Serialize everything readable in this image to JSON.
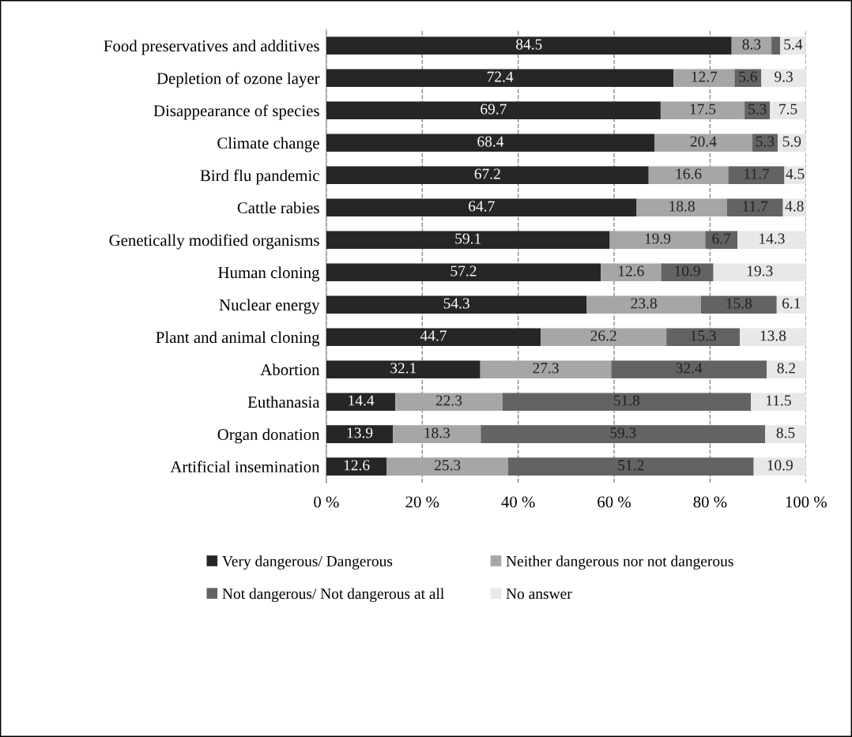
{
  "chart_data": {
    "type": "bar",
    "orientation": "horizontal",
    "stacked": true,
    "categories": [
      "Food preservatives and additives",
      "Depletion of ozone layer",
      "Disappearance of species",
      "Climate change",
      "Bird flu pandemic",
      "Cattle rabies",
      "Genetically modified organisms",
      "Human cloning",
      "Nuclear energy",
      "Plant and animal cloning",
      "Abortion",
      "Euthanasia",
      "Organ donation",
      "Artificial insemination"
    ],
    "series": [
      {
        "name": "Very dangerous/ Dangerous",
        "color": "#262626",
        "values": [
          84.5,
          72.4,
          69.7,
          68.4,
          67.2,
          64.7,
          59.1,
          57.2,
          54.3,
          44.7,
          32.1,
          14.4,
          13.9,
          12.6
        ]
      },
      {
        "name": "Neither dangerous nor not dangerous",
        "color": "#a6a6a6",
        "values": [
          8.3,
          12.7,
          17.5,
          20.4,
          16.6,
          18.8,
          19.9,
          12.6,
          23.8,
          26.2,
          27.3,
          22.3,
          18.3,
          25.3
        ]
      },
      {
        "name": "Not dangerous/ Not dangerous at all",
        "color": "#636363",
        "values": [
          1.8,
          5.6,
          5.3,
          5.3,
          11.7,
          11.7,
          6.7,
          10.9,
          15.8,
          15.3,
          32.4,
          51.8,
          59.3,
          51.2
        ],
        "value_labels": [
          null,
          "5.6",
          "5.3",
          "5.3",
          "11.7",
          "11.7",
          "6.7",
          "10.9",
          "15.8",
          "15.3",
          "32.4",
          "51.8",
          "59.3",
          "51.2"
        ]
      },
      {
        "name": "No answer",
        "color": "#e8e8e8",
        "values": [
          5.4,
          9.3,
          7.5,
          5.9,
          4.5,
          4.8,
          14.3,
          19.3,
          6.1,
          13.8,
          8.2,
          11.5,
          8.5,
          10.9
        ]
      }
    ],
    "data_labels": true,
    "xlim": [
      0,
      100
    ],
    "xticks": [
      {
        "value": 0,
        "label": "0 %"
      },
      {
        "value": 20,
        "label": "20 %"
      },
      {
        "value": 40,
        "label": "40 %"
      },
      {
        "value": 60,
        "label": "60 %"
      },
      {
        "value": 80,
        "label": "80 %"
      },
      {
        "value": 100,
        "label": "100 %"
      }
    ],
    "grid": "x",
    "legend": "bottom"
  }
}
